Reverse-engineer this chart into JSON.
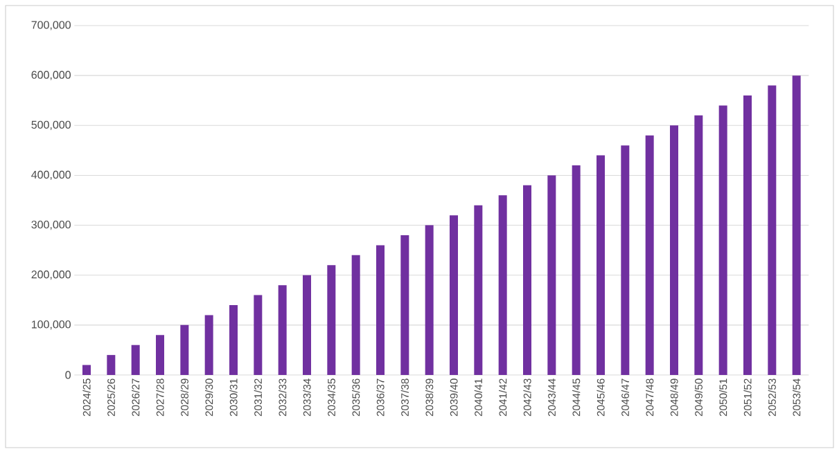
{
  "chart_data": {
    "type": "bar",
    "categories": [
      "2024/25",
      "2025/26",
      "2026/27",
      "2027/28",
      "2028/29",
      "2029/30",
      "2030/31",
      "2031/32",
      "2032/33",
      "2033/34",
      "2034/35",
      "2035/36",
      "2036/37",
      "2037/38",
      "2038/39",
      "2039/40",
      "2040/41",
      "2041/42",
      "2042/43",
      "2043/44",
      "2044/45",
      "2045/46",
      "2046/47",
      "2047/48",
      "2048/49",
      "2049/50",
      "2050/51",
      "2051/52",
      "2052/53",
      "2053/54"
    ],
    "values": [
      20000,
      40000,
      60000,
      80000,
      100000,
      120000,
      140000,
      160000,
      180000,
      200000,
      220000,
      240000,
      260000,
      280000,
      300000,
      320000,
      340000,
      360000,
      380000,
      400000,
      420000,
      440000,
      460000,
      480000,
      500000,
      520000,
      540000,
      560000,
      580000,
      600000
    ],
    "color": "#7030a0",
    "ylim": [
      0,
      700000
    ],
    "yticks": [
      {
        "value": 0,
        "label": "0"
      },
      {
        "value": 100000,
        "label": "100,000"
      },
      {
        "value": 200000,
        "label": "200,000"
      },
      {
        "value": 300000,
        "label": "300,000"
      },
      {
        "value": 400000,
        "label": "400,000"
      },
      {
        "value": 500000,
        "label": "500,000"
      },
      {
        "value": 600000,
        "label": "600,000"
      },
      {
        "value": 700000,
        "label": "700,000"
      }
    ],
    "grid": "y"
  }
}
